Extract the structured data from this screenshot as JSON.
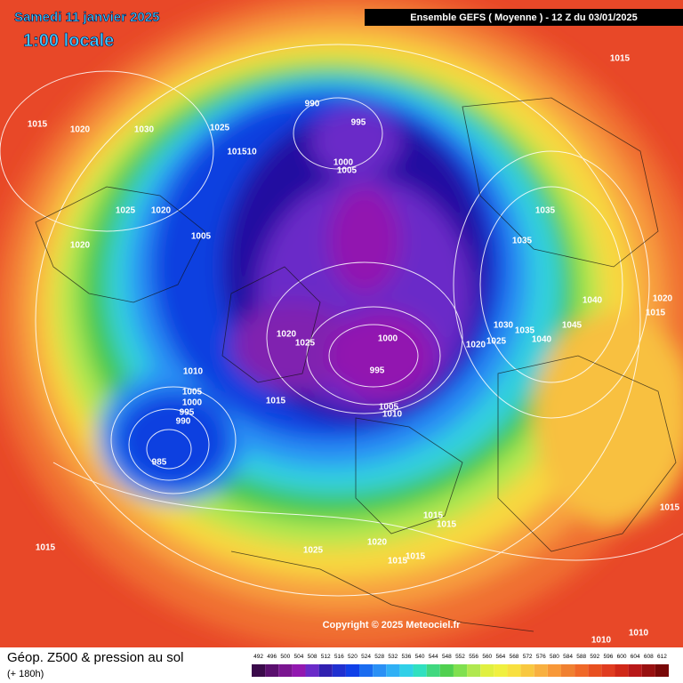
{
  "header": {
    "date": "Samedi 11 janvier 2025",
    "time": "1:00 locale",
    "run": "Ensemble GEFS  ( Moyenne )  -  12 Z du 03/01/2025"
  },
  "map": {
    "pressure_labels": [
      "1015",
      "1015",
      "1020",
      "1030",
      "1025",
      "990",
      "995",
      "101510",
      "1000",
      "1005",
      "1025",
      "1020",
      "1035",
      "1005",
      "1020",
      "1035",
      "1040",
      "1020",
      "1015",
      "1045",
      "1030",
      "1035",
      "1040",
      "1020",
      "1025",
      "1000",
      "1020",
      "1025",
      "995",
      "1010",
      "1005",
      "1000",
      "995",
      "990",
      "1015",
      "1005",
      "1010",
      "985",
      "1015",
      "1015",
      "1015",
      "1020",
      "1025",
      "1015",
      "1015",
      "1015",
      "1010",
      "1010"
    ],
    "copyright": "Copyright © 2025 Meteociel.fr"
  },
  "footer": {
    "title": "Géop. Z500 & pression au sol",
    "lead": "(+ 180h)"
  },
  "colorbar": {
    "levels": [
      492,
      496,
      500,
      504,
      508,
      512,
      516,
      520,
      524,
      528,
      532,
      536,
      540,
      544,
      548,
      552,
      556,
      560,
      564,
      568,
      572,
      576,
      580,
      584,
      588,
      592,
      596,
      600,
      604,
      608,
      612
    ],
    "colors": [
      "#3a0a4a",
      "#5a0f6e",
      "#7a1590",
      "#9218b0",
      "#6a2ac8",
      "#3020b0",
      "#2030d0",
      "#1040e8",
      "#1a6cf0",
      "#2a90f5",
      "#30b0f5",
      "#30d0e8",
      "#30e0c0",
      "#40d880",
      "#50d050",
      "#80e050",
      "#b0e850",
      "#e0f040",
      "#f0f040",
      "#f8e040",
      "#f8c840",
      "#f8b040",
      "#f89838",
      "#f08030",
      "#f06828",
      "#e85020",
      "#e03c20",
      "#d02818",
      "#b81818",
      "#981010",
      "#780808"
    ]
  }
}
